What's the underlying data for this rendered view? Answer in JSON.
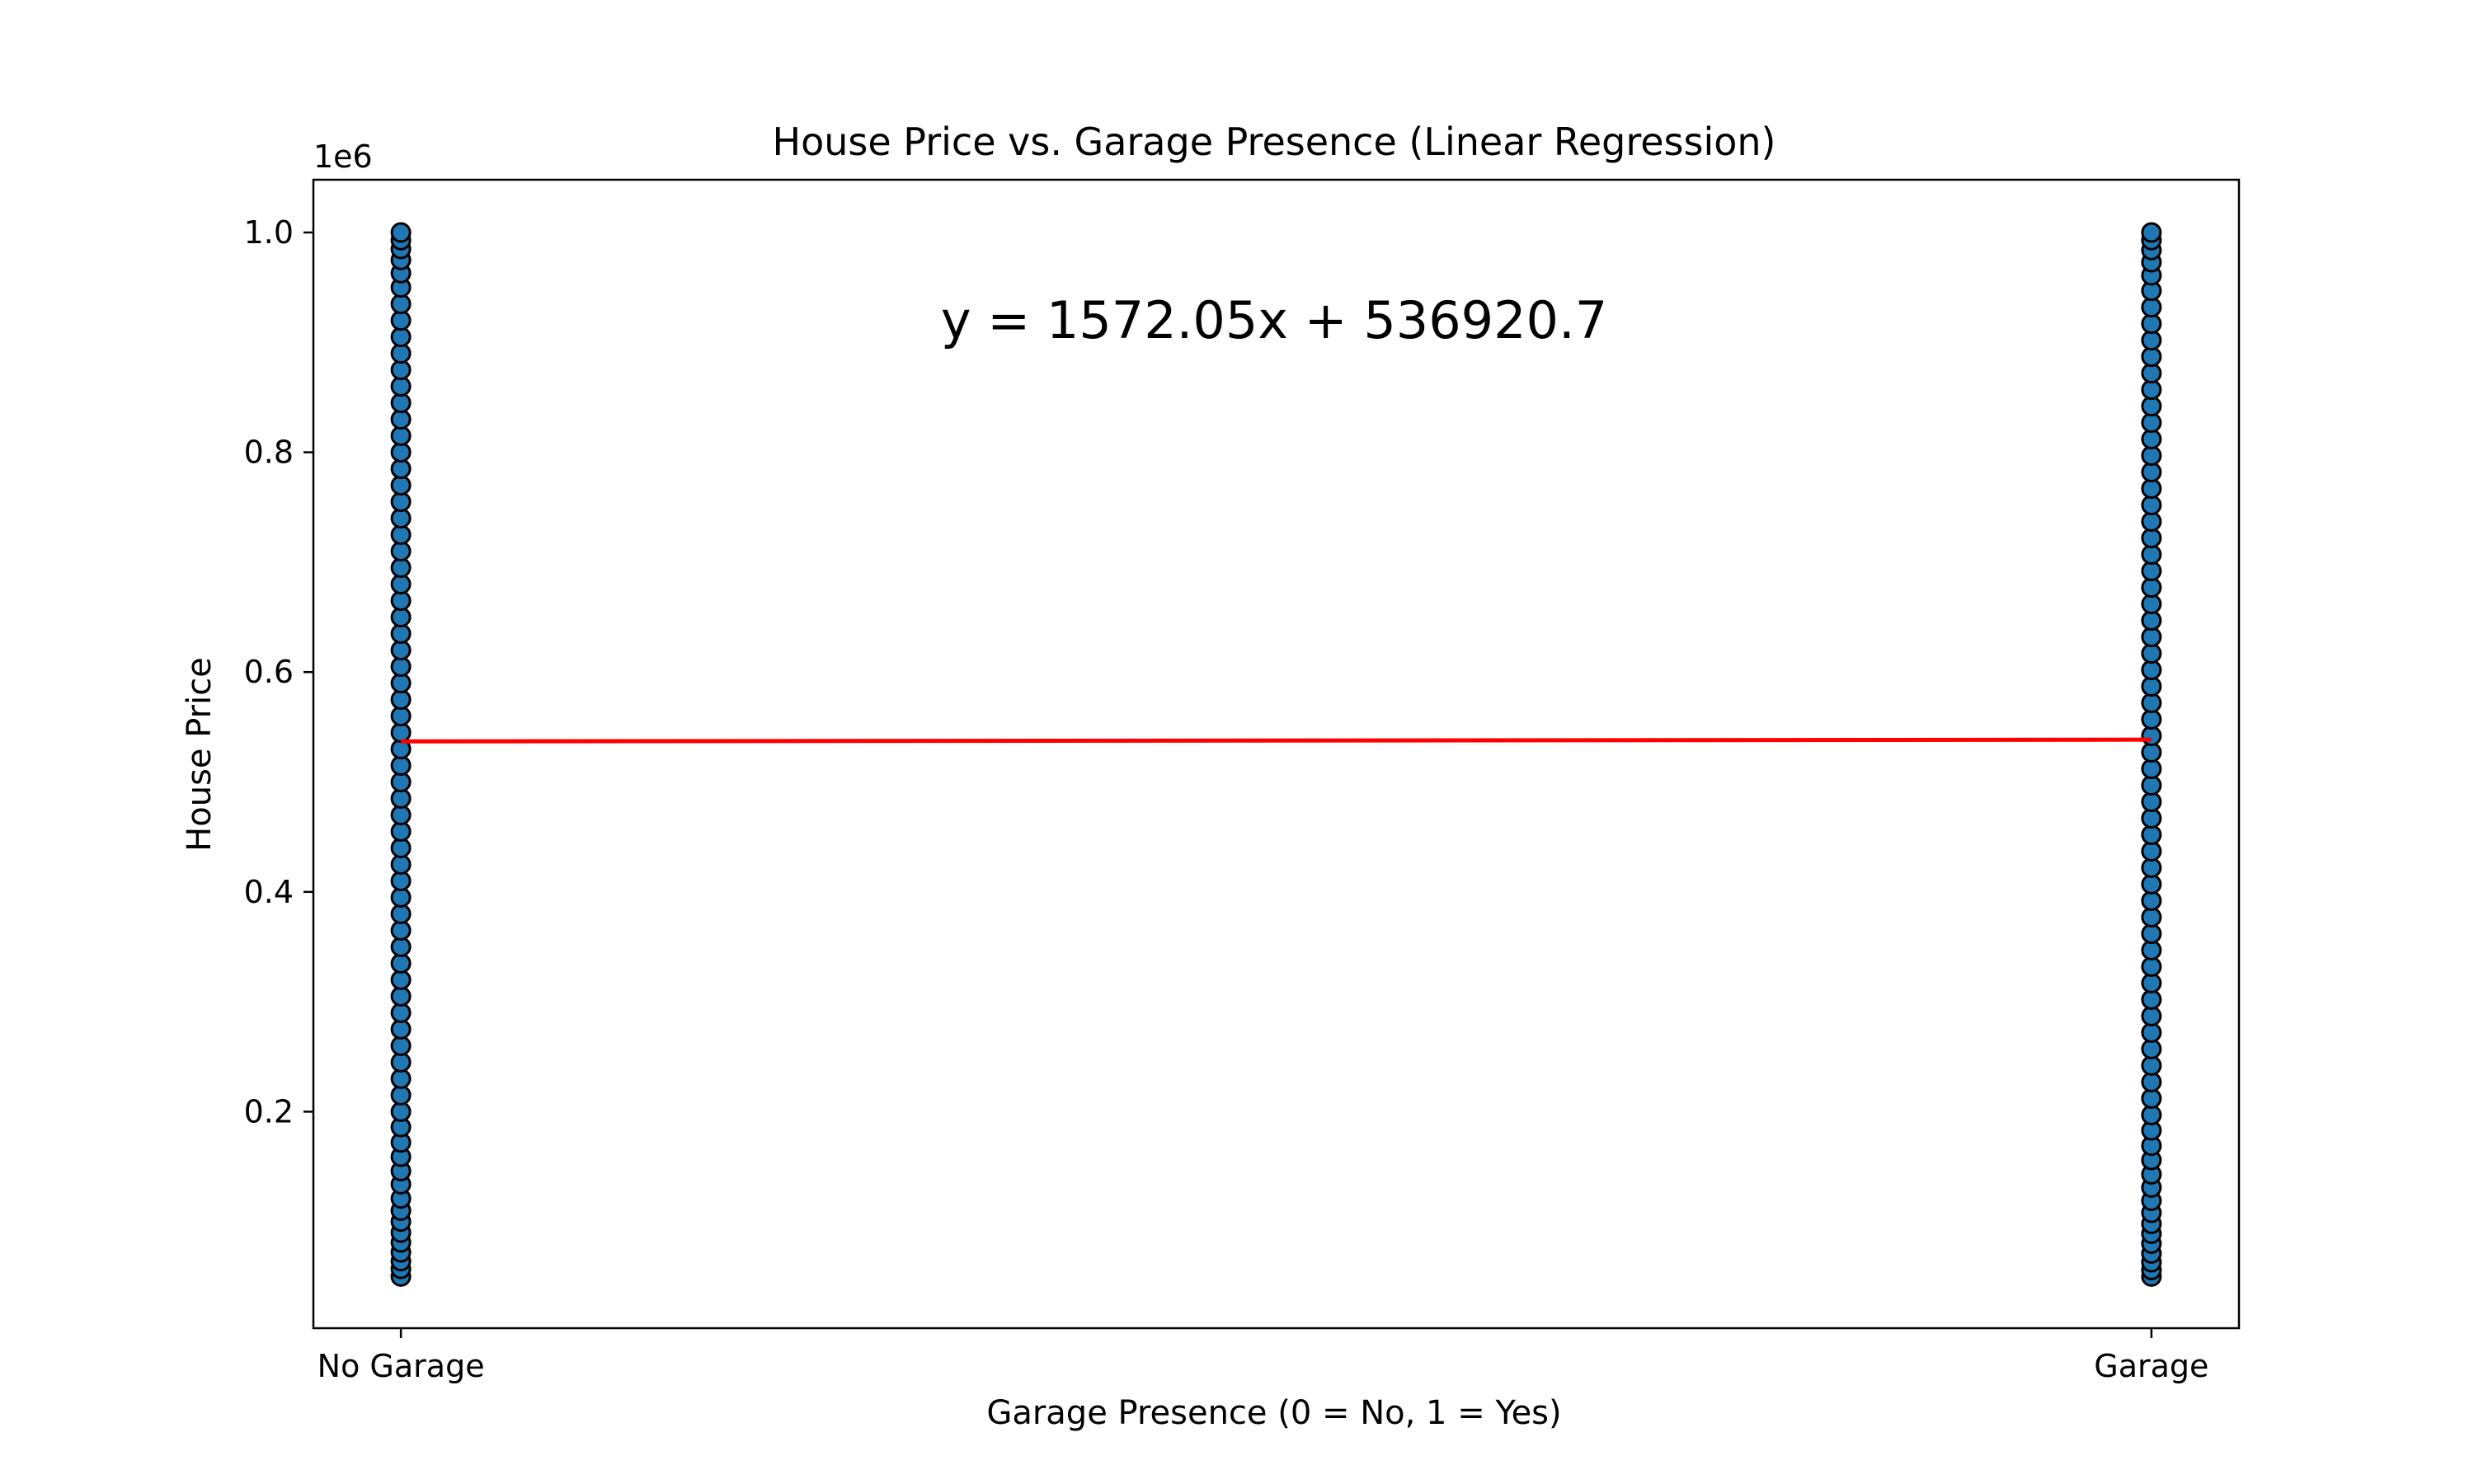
{
  "chart_data": {
    "type": "scatter",
    "title": "House Price vs. Garage Presence (Linear Regression)",
    "xlabel": "Garage Presence (0 = No, 1 = Yes)",
    "ylabel": "House Price",
    "y_offset_label": "1e6",
    "xlim": [
      -0.05,
      1.05
    ],
    "ylim": [
      0.003,
      1.048
    ],
    "x_ticks": [
      {
        "value": 0,
        "label": "No Garage"
      },
      {
        "value": 1,
        "label": "Garage"
      }
    ],
    "y_ticks": [
      {
        "value": 0.2,
        "label": "0.2"
      },
      {
        "value": 0.4,
        "label": "0.4"
      },
      {
        "value": 0.6,
        "label": "0.6"
      },
      {
        "value": 0.8,
        "label": "0.8"
      },
      {
        "value": 1.0,
        "label": "1.0"
      }
    ],
    "grid": false,
    "series": [
      {
        "x": 0,
        "color": "#1f77b4",
        "edge_color": "#000000",
        "values": [
          0.05,
          0.057,
          0.064,
          0.072,
          0.081,
          0.09,
          0.1,
          0.11,
          0.121,
          0.134,
          0.146,
          0.159,
          0.172,
          0.186,
          0.2,
          0.215,
          0.23,
          0.245,
          0.26,
          0.275,
          0.29,
          0.305,
          0.32,
          0.335,
          0.35,
          0.365,
          0.38,
          0.395,
          0.41,
          0.425,
          0.44,
          0.455,
          0.47,
          0.485,
          0.5,
          0.515,
          0.53,
          0.545,
          0.56,
          0.575,
          0.59,
          0.605,
          0.62,
          0.635,
          0.65,
          0.665,
          0.68,
          0.695,
          0.71,
          0.725,
          0.74,
          0.755,
          0.77,
          0.785,
          0.8,
          0.815,
          0.83,
          0.845,
          0.86,
          0.875,
          0.89,
          0.905,
          0.92,
          0.935,
          0.95,
          0.963,
          0.975,
          0.985,
          0.993,
          1.0
        ]
      },
      {
        "x": 1,
        "color": "#1f77b4",
        "edge_color": "#000000",
        "values": [
          0.05,
          0.056,
          0.063,
          0.071,
          0.08,
          0.089,
          0.098,
          0.108,
          0.119,
          0.131,
          0.143,
          0.156,
          0.169,
          0.183,
          0.197,
          0.212,
          0.227,
          0.242,
          0.257,
          0.272,
          0.287,
          0.302,
          0.317,
          0.332,
          0.347,
          0.362,
          0.377,
          0.392,
          0.407,
          0.422,
          0.437,
          0.452,
          0.467,
          0.482,
          0.497,
          0.512,
          0.527,
          0.542,
          0.557,
          0.572,
          0.587,
          0.602,
          0.617,
          0.632,
          0.647,
          0.662,
          0.677,
          0.692,
          0.707,
          0.722,
          0.737,
          0.752,
          0.767,
          0.782,
          0.797,
          0.812,
          0.827,
          0.842,
          0.857,
          0.872,
          0.887,
          0.902,
          0.917,
          0.932,
          0.947,
          0.961,
          0.973,
          0.984,
          0.993,
          1.0
        ]
      }
    ],
    "regression": {
      "equation_label": "y = 1572.05x + 536920.7",
      "slope": 1572.05,
      "intercept": 536920.7,
      "x_range": [
        0,
        1
      ],
      "color": "#ff0000"
    }
  }
}
